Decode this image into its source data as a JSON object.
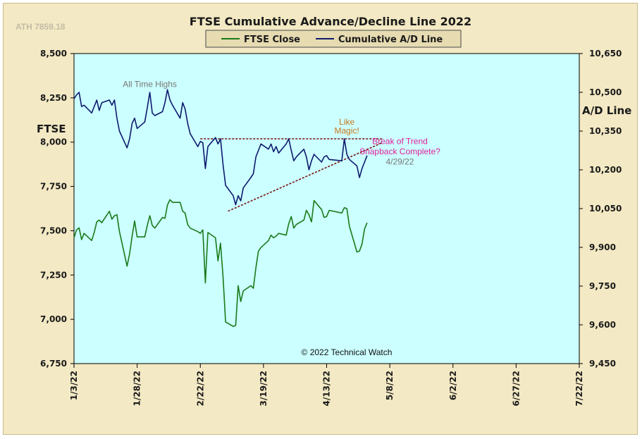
{
  "chart_data": {
    "type": "line",
    "title": "FTSE Cumulative  Advance/Decline Line 2022",
    "corner_label": "ATH 7859.18",
    "copyright": "© 2022 Technical Watch",
    "left_axis": {
      "label": "FTSE",
      "range": [
        6750,
        8500
      ],
      "ticks": [
        6750,
        7000,
        7250,
        7500,
        7750,
        8000,
        8250,
        8500
      ],
      "tick_labels": [
        "6,750",
        "7,000",
        "7,250",
        "7,500",
        "7,750",
        "8,000",
        "8,250",
        "8,500"
      ]
    },
    "right_axis": {
      "label": "A/D Line",
      "range": [
        9450,
        10650
      ],
      "ticks": [
        9450,
        9600,
        9750,
        9900,
        10050,
        10200,
        10350,
        10500,
        10650
      ],
      "tick_labels": [
        "9,450",
        "9,600",
        "9,750",
        "9,900",
        "10,050",
        "10,200",
        "10,350",
        "10,500",
        "10,650"
      ]
    },
    "x_axis": {
      "range": [
        "2022-01-03",
        "2022-07-22"
      ],
      "ticks": [
        "2022-01-03",
        "2022-01-28",
        "2022-02-22",
        "2022-03-19",
        "2022-04-13",
        "2022-05-08",
        "2022-06-02",
        "2022-06-27",
        "2022-07-22"
      ],
      "tick_labels": [
        "1/3/22",
        "1/28/22",
        "2/22/22",
        "3/19/22",
        "4/13/22",
        "5/8/22",
        "6/2/22",
        "6/27/22",
        "7/22/22"
      ]
    },
    "legend": {
      "placement": "top-center"
    },
    "series": [
      {
        "name": "FTSE Close",
        "axis": "left",
        "color": "#1a7a1a",
        "points": [
          [
            "2022-01-03",
            7460
          ],
          [
            "2022-01-04",
            7505
          ],
          [
            "2022-01-05",
            7516
          ],
          [
            "2022-01-06",
            7450
          ],
          [
            "2022-01-07",
            7485
          ],
          [
            "2022-01-10",
            7445
          ],
          [
            "2022-01-11",
            7490
          ],
          [
            "2022-01-12",
            7550
          ],
          [
            "2022-01-13",
            7560
          ],
          [
            "2022-01-14",
            7545
          ],
          [
            "2022-01-17",
            7610
          ],
          [
            "2022-01-18",
            7565
          ],
          [
            "2022-01-19",
            7585
          ],
          [
            "2022-01-20",
            7590
          ],
          [
            "2022-01-21",
            7495
          ],
          [
            "2022-01-24",
            7300
          ],
          [
            "2022-01-25",
            7370
          ],
          [
            "2022-01-26",
            7470
          ],
          [
            "2022-01-27",
            7555
          ],
          [
            "2022-01-28",
            7465
          ],
          [
            "2022-01-31",
            7465
          ],
          [
            "2022-02-01",
            7530
          ],
          [
            "2022-02-02",
            7585
          ],
          [
            "2022-02-03",
            7530
          ],
          [
            "2022-02-04",
            7515
          ],
          [
            "2022-02-07",
            7575
          ],
          [
            "2022-02-08",
            7570
          ],
          [
            "2022-02-09",
            7645
          ],
          [
            "2022-02-10",
            7675
          ],
          [
            "2022-02-11",
            7660
          ],
          [
            "2022-02-14",
            7660
          ],
          [
            "2022-02-15",
            7610
          ],
          [
            "2022-02-16",
            7600
          ],
          [
            "2022-02-17",
            7535
          ],
          [
            "2022-02-18",
            7515
          ],
          [
            "2022-02-21",
            7495
          ],
          [
            "2022-02-22",
            7485
          ],
          [
            "2022-02-23",
            7505
          ],
          [
            "2022-02-24",
            7205
          ],
          [
            "2022-02-25",
            7490
          ],
          [
            "2022-02-28",
            7460
          ],
          [
            "2022-03-01",
            7330
          ],
          [
            "2022-03-02",
            7430
          ],
          [
            "2022-03-03",
            7240
          ],
          [
            "2022-03-04",
            6985
          ],
          [
            "2022-03-07",
            6960
          ],
          [
            "2022-03-08",
            6965
          ],
          [
            "2022-03-09",
            7190
          ],
          [
            "2022-03-10",
            7100
          ],
          [
            "2022-03-11",
            7160
          ],
          [
            "2022-03-14",
            7190
          ],
          [
            "2022-03-15",
            7175
          ],
          [
            "2022-03-16",
            7290
          ],
          [
            "2022-03-17",
            7385
          ],
          [
            "2022-03-18",
            7405
          ],
          [
            "2022-03-21",
            7445
          ],
          [
            "2022-03-22",
            7475
          ],
          [
            "2022-03-23",
            7460
          ],
          [
            "2022-03-24",
            7470
          ],
          [
            "2022-03-25",
            7485
          ],
          [
            "2022-03-28",
            7475
          ],
          [
            "2022-03-29",
            7540
          ],
          [
            "2022-03-30",
            7580
          ],
          [
            "2022-03-31",
            7515
          ],
          [
            "2022-04-01",
            7535
          ],
          [
            "2022-04-04",
            7560
          ],
          [
            "2022-04-05",
            7615
          ],
          [
            "2022-04-06",
            7590
          ],
          [
            "2022-04-07",
            7550
          ],
          [
            "2022-04-08",
            7670
          ],
          [
            "2022-04-11",
            7620
          ],
          [
            "2022-04-12",
            7575
          ],
          [
            "2022-04-13",
            7580
          ],
          [
            "2022-04-14",
            7615
          ],
          [
            "2022-04-19",
            7600
          ],
          [
            "2022-04-20",
            7630
          ],
          [
            "2022-04-21",
            7625
          ],
          [
            "2022-04-22",
            7525
          ],
          [
            "2022-04-25",
            7380
          ],
          [
            "2022-04-26",
            7385
          ],
          [
            "2022-04-27",
            7425
          ],
          [
            "2022-04-28",
            7510
          ],
          [
            "2022-04-29",
            7545
          ]
        ]
      },
      {
        "name": "Cumulative A/D Line",
        "axis": "right",
        "color": "#0d1a6e",
        "points": [
          [
            "2022-01-03",
            10475
          ],
          [
            "2022-01-04",
            10490
          ],
          [
            "2022-01-05",
            10500
          ],
          [
            "2022-01-06",
            10445
          ],
          [
            "2022-01-07",
            10450
          ],
          [
            "2022-01-10",
            10420
          ],
          [
            "2022-01-11",
            10445
          ],
          [
            "2022-01-12",
            10470
          ],
          [
            "2022-01-13",
            10430
          ],
          [
            "2022-01-14",
            10460
          ],
          [
            "2022-01-17",
            10470
          ],
          [
            "2022-01-18",
            10450
          ],
          [
            "2022-01-19",
            10470
          ],
          [
            "2022-01-20",
            10400
          ],
          [
            "2022-01-21",
            10350
          ],
          [
            "2022-01-24",
            10285
          ],
          [
            "2022-01-25",
            10320
          ],
          [
            "2022-01-26",
            10380
          ],
          [
            "2022-01-27",
            10400
          ],
          [
            "2022-01-28",
            10360
          ],
          [
            "2022-01-31",
            10385
          ],
          [
            "2022-02-01",
            10440
          ],
          [
            "2022-02-02",
            10500
          ],
          [
            "2022-02-03",
            10420
          ],
          [
            "2022-02-04",
            10410
          ],
          [
            "2022-02-07",
            10425
          ],
          [
            "2022-02-08",
            10460
          ],
          [
            "2022-02-09",
            10510
          ],
          [
            "2022-02-10",
            10470
          ],
          [
            "2022-02-11",
            10450
          ],
          [
            "2022-02-14",
            10400
          ],
          [
            "2022-02-15",
            10460
          ],
          [
            "2022-02-16",
            10435
          ],
          [
            "2022-02-17",
            10380
          ],
          [
            "2022-02-18",
            10340
          ],
          [
            "2022-02-21",
            10290
          ],
          [
            "2022-02-22",
            10310
          ],
          [
            "2022-02-23",
            10305
          ],
          [
            "2022-02-24",
            10205
          ],
          [
            "2022-02-25",
            10290
          ],
          [
            "2022-02-28",
            10325
          ],
          [
            "2022-03-01",
            10300
          ],
          [
            "2022-03-02",
            10320
          ],
          [
            "2022-03-03",
            10220
          ],
          [
            "2022-03-04",
            10140
          ],
          [
            "2022-03-07",
            10100
          ],
          [
            "2022-03-08",
            10065
          ],
          [
            "2022-03-09",
            10100
          ],
          [
            "2022-03-10",
            10080
          ],
          [
            "2022-03-11",
            10130
          ],
          [
            "2022-03-14",
            10170
          ],
          [
            "2022-03-15",
            10185
          ],
          [
            "2022-03-16",
            10250
          ],
          [
            "2022-03-17",
            10275
          ],
          [
            "2022-03-18",
            10300
          ],
          [
            "2022-03-21",
            10280
          ],
          [
            "2022-03-22",
            10300
          ],
          [
            "2022-03-23",
            10270
          ],
          [
            "2022-03-24",
            10290
          ],
          [
            "2022-03-25",
            10265
          ],
          [
            "2022-03-28",
            10300
          ],
          [
            "2022-03-29",
            10320
          ],
          [
            "2022-03-30",
            10275
          ],
          [
            "2022-03-31",
            10235
          ],
          [
            "2022-04-01",
            10250
          ],
          [
            "2022-04-04",
            10280
          ],
          [
            "2022-04-05",
            10250
          ],
          [
            "2022-04-06",
            10200
          ],
          [
            "2022-04-07",
            10235
          ],
          [
            "2022-04-08",
            10260
          ],
          [
            "2022-04-11",
            10230
          ],
          [
            "2022-04-12",
            10250
          ],
          [
            "2022-04-13",
            10255
          ],
          [
            "2022-04-14",
            10240
          ],
          [
            "2022-04-19",
            10235
          ],
          [
            "2022-04-20",
            10320
          ],
          [
            "2022-04-21",
            10260
          ],
          [
            "2022-04-22",
            10240
          ],
          [
            "2022-04-25",
            10215
          ],
          [
            "2022-04-26",
            10170
          ],
          [
            "2022-04-27",
            10205
          ],
          [
            "2022-04-28",
            10230
          ],
          [
            "2022-04-29",
            10255
          ]
        ]
      }
    ],
    "trendlines": [
      {
        "axis": "right",
        "from": [
          "2022-02-22",
          10320
        ],
        "to": [
          "2022-05-05",
          10320
        ],
        "color": "#7a1010"
      },
      {
        "axis": "right",
        "from": [
          "2022-03-05",
          10040
        ],
        "to": [
          "2022-05-05",
          10305
        ],
        "color": "#7a1010"
      }
    ],
    "annotations": [
      {
        "text": "All Time Highs",
        "at": [
          "2022-02-02",
          10520
        ],
        "axis": "right",
        "color": "#777777"
      },
      {
        "text": "Like",
        "at": [
          "2022-04-21",
          10375
        ],
        "axis": "right",
        "color": "#c8761a"
      },
      {
        "text": "Magic!",
        "at": [
          "2022-04-21",
          10340
        ],
        "axis": "right",
        "color": "#c8761a"
      },
      {
        "text": "Break of Trend",
        "at": [
          "2022-05-12",
          10300
        ],
        "axis": "right",
        "color": "#e0209a"
      },
      {
        "text": "Snapback Complete?",
        "at": [
          "2022-05-12",
          10260
        ],
        "axis": "right",
        "color": "#e0209a"
      },
      {
        "text": "4/29/22",
        "at": [
          "2022-05-12",
          10220
        ],
        "axis": "right",
        "color": "#777777"
      }
    ]
  }
}
